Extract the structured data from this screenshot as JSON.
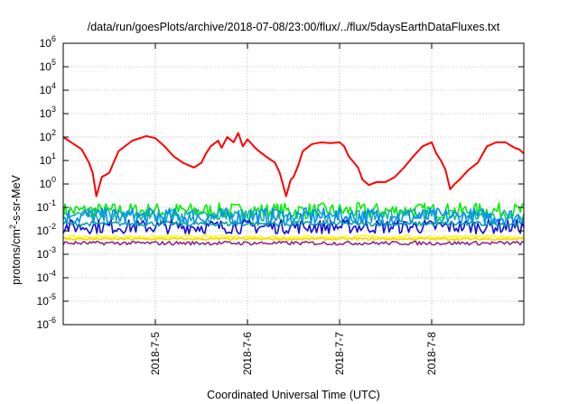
{
  "chart_data": {
    "type": "line",
    "title": "/data/run/goesPlots/archive/2018-07-08/23:00/flux/../flux/5daysEarthDataFluxes.txt",
    "xlabel": "Coordinated Universal Time (UTC)",
    "ylabel_parts": {
      "pre": "protons/cm",
      "sup": "2",
      "post": "-s-sr-MeV"
    },
    "x_range_days": [
      "2018-07-04",
      "2018-07-09"
    ],
    "x_range": [
      0,
      5
    ],
    "x_ticks": [
      {
        "label": "2018-7-5",
        "x": 1
      },
      {
        "label": "2018-7-6",
        "x": 2
      },
      {
        "label": "2018-7-7",
        "x": 3
      },
      {
        "label": "2018-7-8",
        "x": 4
      }
    ],
    "y_scale": "log",
    "ylim": [
      1e-06,
      1000000.0
    ],
    "y_ticks": [
      {
        "base": "10",
        "exp": "6",
        "value": 1000000.0
      },
      {
        "base": "10",
        "exp": "5",
        "value": 100000.0
      },
      {
        "base": "10",
        "exp": "4",
        "value": 10000.0
      },
      {
        "base": "10",
        "exp": "3",
        "value": 1000.0
      },
      {
        "base": "10",
        "exp": "2",
        "value": 100.0
      },
      {
        "base": "10",
        "exp": "1",
        "value": 10.0
      },
      {
        "base": "10",
        "exp": "0",
        "value": 1.0
      },
      {
        "base": "10",
        "exp": "-1",
        "value": 0.1
      },
      {
        "base": "10",
        "exp": "-2",
        "value": 0.01
      },
      {
        "base": "10",
        "exp": "-3",
        "value": 0.001
      },
      {
        "base": "10",
        "exp": "-4",
        "value": 0.0001
      },
      {
        "base": "10",
        "exp": "-5",
        "value": 1e-05
      },
      {
        "base": "10",
        "exp": "-6",
        "value": 1e-06
      }
    ],
    "grid": true,
    "legend": "none",
    "series": [
      {
        "color": "#ff0000",
        "x": [
          0.0,
          0.1,
          0.2,
          0.28,
          0.32,
          0.36,
          0.42,
          0.5,
          0.6,
          0.75,
          0.9,
          1.0,
          1.1,
          1.2,
          1.3,
          1.42,
          1.5,
          1.55,
          1.6,
          1.68,
          1.72,
          1.78,
          1.85,
          1.9,
          1.95,
          2.0,
          2.1,
          2.2,
          2.3,
          2.35,
          2.42,
          2.47,
          2.5,
          2.55,
          2.6,
          2.7,
          2.8,
          2.9,
          3.0,
          3.05,
          3.1,
          3.2,
          3.25,
          3.32,
          3.4,
          3.5,
          3.6,
          3.7,
          3.8,
          3.9,
          4.0,
          4.05,
          4.1,
          4.15,
          4.2,
          4.25,
          4.3,
          4.4,
          4.5,
          4.6,
          4.7,
          4.8,
          4.9,
          4.95,
          5.0
        ],
        "y": [
          100,
          55,
          30,
          8,
          3,
          0.3,
          2,
          3,
          25,
          70,
          110,
          90,
          40,
          15,
          8,
          5,
          8,
          20,
          40,
          70,
          35,
          100,
          60,
          150,
          40,
          80,
          30,
          15,
          8,
          3,
          0.3,
          1.5,
          2,
          6,
          25,
          50,
          60,
          55,
          60,
          40,
          15,
          5,
          1.5,
          0.9,
          1.2,
          1.2,
          2,
          5,
          15,
          40,
          60,
          20,
          10,
          4,
          0.6,
          1,
          1.5,
          4,
          8,
          40,
          60,
          60,
          35,
          30,
          20
        ]
      },
      {
        "color": "#00ee00",
        "level": 0.07,
        "spread": 0.35
      },
      {
        "color": "#20b0a0",
        "level": 0.045,
        "spread": 0.3
      },
      {
        "color": "#0090ff",
        "level": 0.04,
        "spread": 0.38
      },
      {
        "color": "#1010d8",
        "level": 0.015,
        "spread": 0.3
      },
      {
        "color": "#10a0a0",
        "level": 0.02,
        "spread": 0.1
      },
      {
        "color": "#ffff00",
        "level": 0.0055,
        "spread": 0.07
      },
      {
        "color": "#ffd000",
        "level": 0.0045,
        "spread": 0.05
      },
      {
        "color": "#8a2c8a",
        "level": 0.003,
        "spread": 0.08
      }
    ]
  }
}
